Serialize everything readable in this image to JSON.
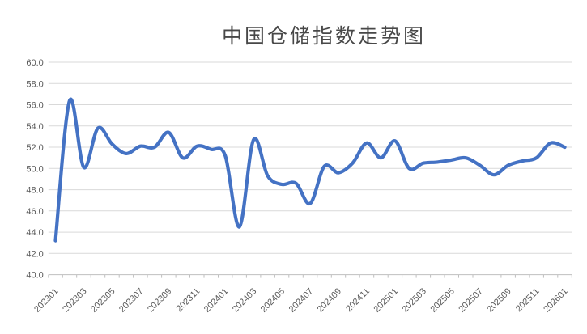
{
  "chart_data": {
    "type": "line",
    "title": "中国仓储指数走势图",
    "x": [
      "202301",
      "202302",
      "202303",
      "202304",
      "202305",
      "202306",
      "202307",
      "202308",
      "202309",
      "202310",
      "202311",
      "202312",
      "202401",
      "202402",
      "202403",
      "202404",
      "202405",
      "202406",
      "202407",
      "202408",
      "202409",
      "202410",
      "202411",
      "202412",
      "202501",
      "202502",
      "202503",
      "202504",
      "202505",
      "202506",
      "202507",
      "202508",
      "202509",
      "202510",
      "202511",
      "202512",
      "202601"
    ],
    "values": [
      43.2,
      56.4,
      50.1,
      53.8,
      52.3,
      51.4,
      52.1,
      52.0,
      53.4,
      51.0,
      52.1,
      51.8,
      51.2,
      44.5,
      52.7,
      49.3,
      48.5,
      48.6,
      46.7,
      50.2,
      49.6,
      50.5,
      52.4,
      51.0,
      52.6,
      50.0,
      50.5,
      50.6,
      50.8,
      51.0,
      50.3,
      49.4,
      50.3,
      50.7,
      51.0,
      52.4,
      52.0
    ],
    "ylim": [
      40.0,
      60.0
    ],
    "ytick_step": 2.0,
    "yticks": [
      "60.0",
      "58.0",
      "56.0",
      "54.0",
      "52.0",
      "50.0",
      "48.0",
      "46.0",
      "44.0",
      "42.0",
      "40.0"
    ],
    "xtick_label_every": 2,
    "grid": true,
    "legend": "none",
    "xlabel": "",
    "ylabel": "",
    "colors": {
      "line": "#4472C4",
      "grid": "#D9D9D9",
      "axis": "#BFBFBF",
      "tick_label": "#595959",
      "title": "#484848"
    }
  }
}
